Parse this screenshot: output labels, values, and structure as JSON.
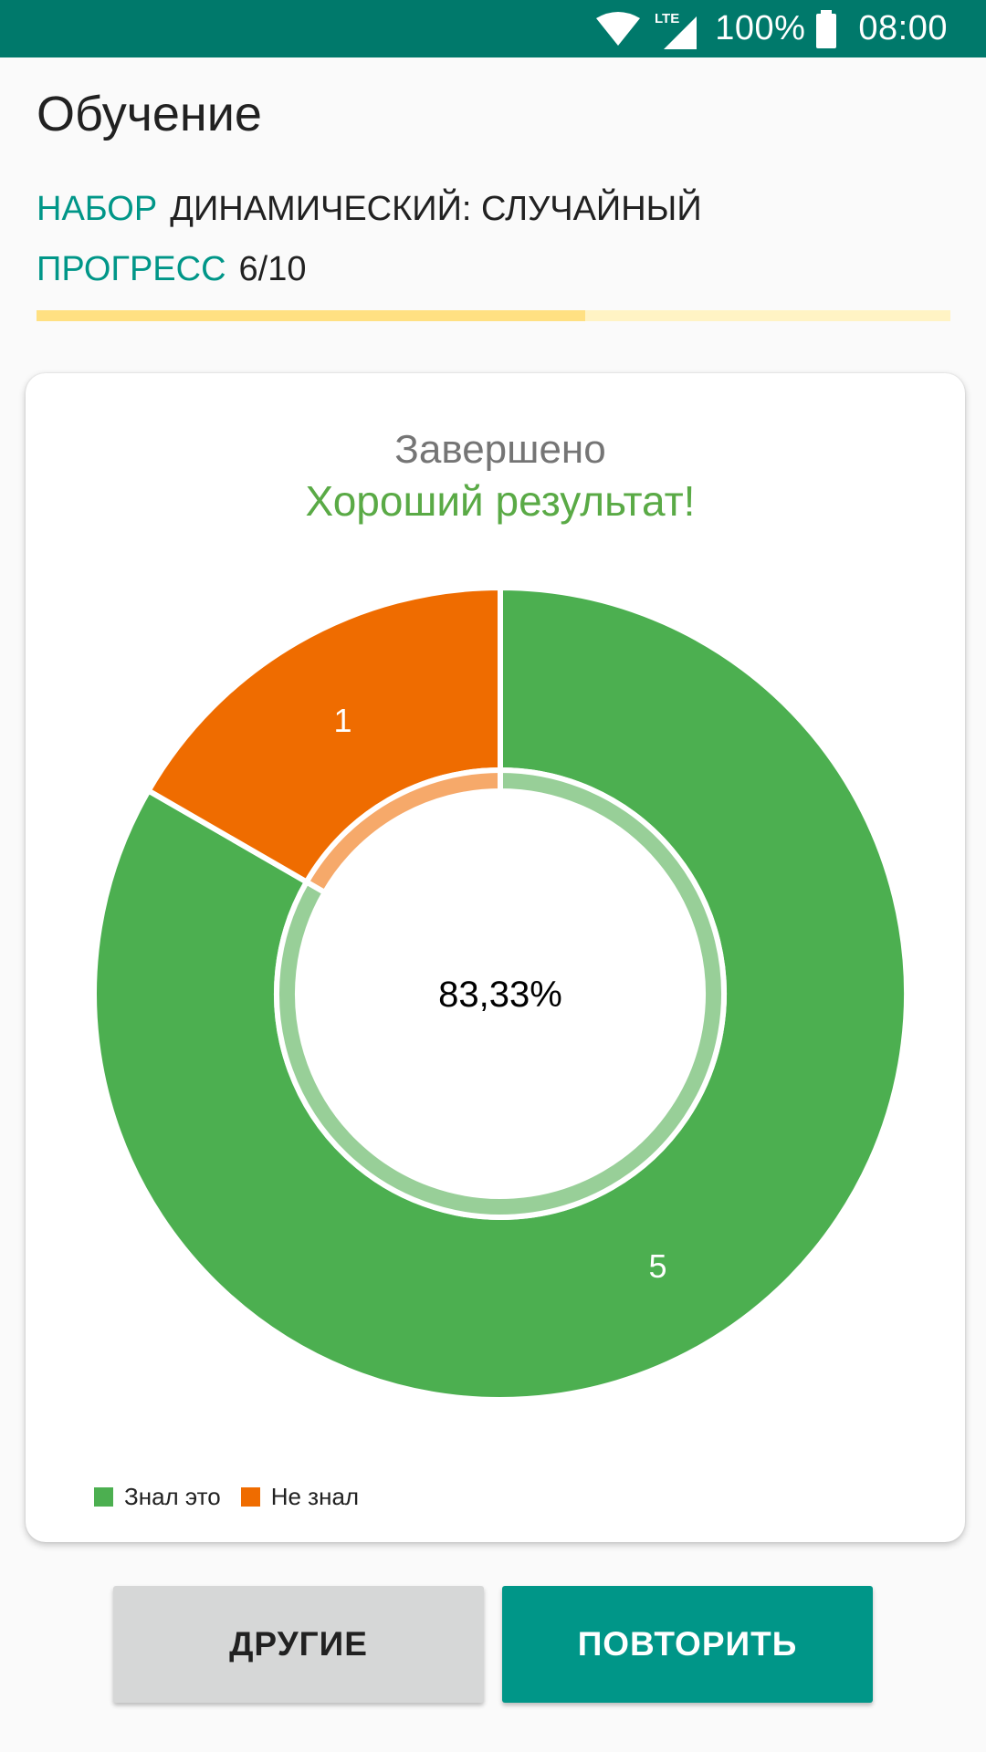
{
  "status_bar": {
    "network": "LTE",
    "battery": "100%",
    "time": "08:00",
    "icons": [
      "wifi-icon",
      "signal-icon",
      "battery-icon"
    ]
  },
  "header": {
    "title": "Обучение",
    "set_label": "НАБОР",
    "set_value": "ДИНАМИЧЕСКИЙ: СЛУЧАЙНЫЙ",
    "progress_label": "ПРОГРЕСС",
    "progress_value": "6/10",
    "progress_fraction": 0.6
  },
  "result": {
    "title": "Завершено",
    "subtitle": "Хороший результат!"
  },
  "chart_data": {
    "type": "pie",
    "donut": true,
    "center_label": "83,33%",
    "slices": [
      {
        "name": "Знал это",
        "value": 5,
        "label": "5",
        "color": "#4caf50",
        "inner_color": "#98cf98"
      },
      {
        "name": "Не знал",
        "value": 1,
        "label": "1",
        "color": "#ef6c00",
        "inner_color": "#f6a96a"
      }
    ],
    "legend": "bottom-left"
  },
  "buttons": {
    "other": "ДРУГИЕ",
    "repeat": "ПОВТОРИТЬ"
  },
  "colors": {
    "status_bar": "#00796b",
    "accent": "#009688",
    "progress_fill": "#ffe082",
    "progress_track": "#fff3c4"
  }
}
